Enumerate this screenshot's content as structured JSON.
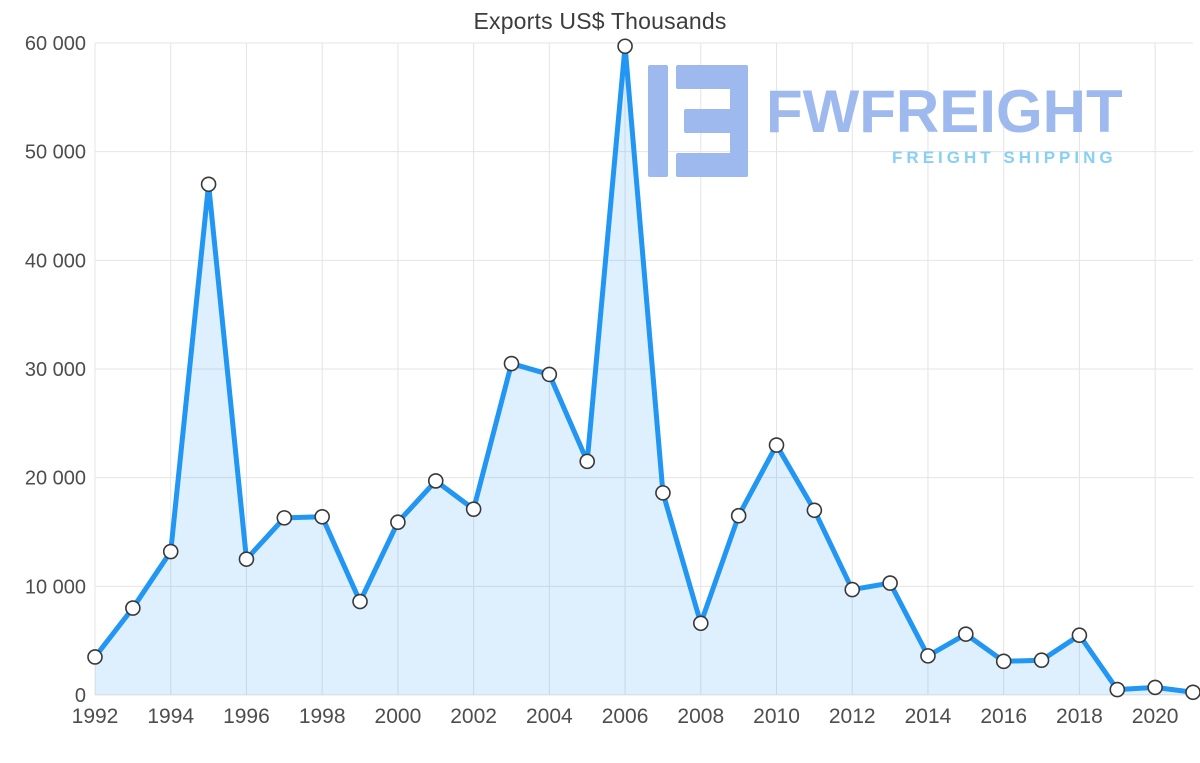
{
  "watermark": {
    "brand": "FWFREIGHT",
    "tagline": "FREIGHT SHIPPING",
    "colors": {
      "brand": "#9db9ee",
      "tagline": "#87d0f3",
      "icon": "#9db9ee"
    }
  },
  "chart_data": {
    "type": "area",
    "title": "Exports US$ Thousands",
    "xlabel": "",
    "ylabel": "",
    "grid": true,
    "legend": "none",
    "x": [
      1992,
      1993,
      1994,
      1995,
      1996,
      1997,
      1998,
      1999,
      2000,
      2001,
      2002,
      2003,
      2004,
      2005,
      2006,
      2007,
      2008,
      2009,
      2010,
      2011,
      2012,
      2013,
      2014,
      2015,
      2016,
      2017,
      2018,
      2019,
      2020,
      2021
    ],
    "values": [
      3500,
      8000,
      13200,
      47000,
      12500,
      16300,
      16400,
      8600,
      15900,
      19700,
      17100,
      30500,
      29500,
      21500,
      59700,
      18600,
      6600,
      16500,
      23000,
      17000,
      9700,
      10300,
      3600,
      5600,
      3100,
      3200,
      5500,
      500,
      700,
      250
    ],
    "ylim": [
      0,
      60000
    ],
    "yticks": [
      0,
      10000,
      20000,
      30000,
      40000,
      50000,
      60000
    ],
    "ytick_labels": [
      "0",
      "10 000",
      "20 000",
      "30 000",
      "40 000",
      "50 000",
      "60 000"
    ],
    "xtick_years": [
      1992,
      1994,
      1996,
      1998,
      2000,
      2002,
      2004,
      2006,
      2008,
      2010,
      2012,
      2014,
      2016,
      2018,
      2020
    ],
    "colors": {
      "line": "#2196f3",
      "area_fill": "rgba(33,150,243,0.15)",
      "marker_fill": "#ffffff",
      "marker_stroke": "#383838",
      "grid": "#e4e4e4"
    }
  }
}
